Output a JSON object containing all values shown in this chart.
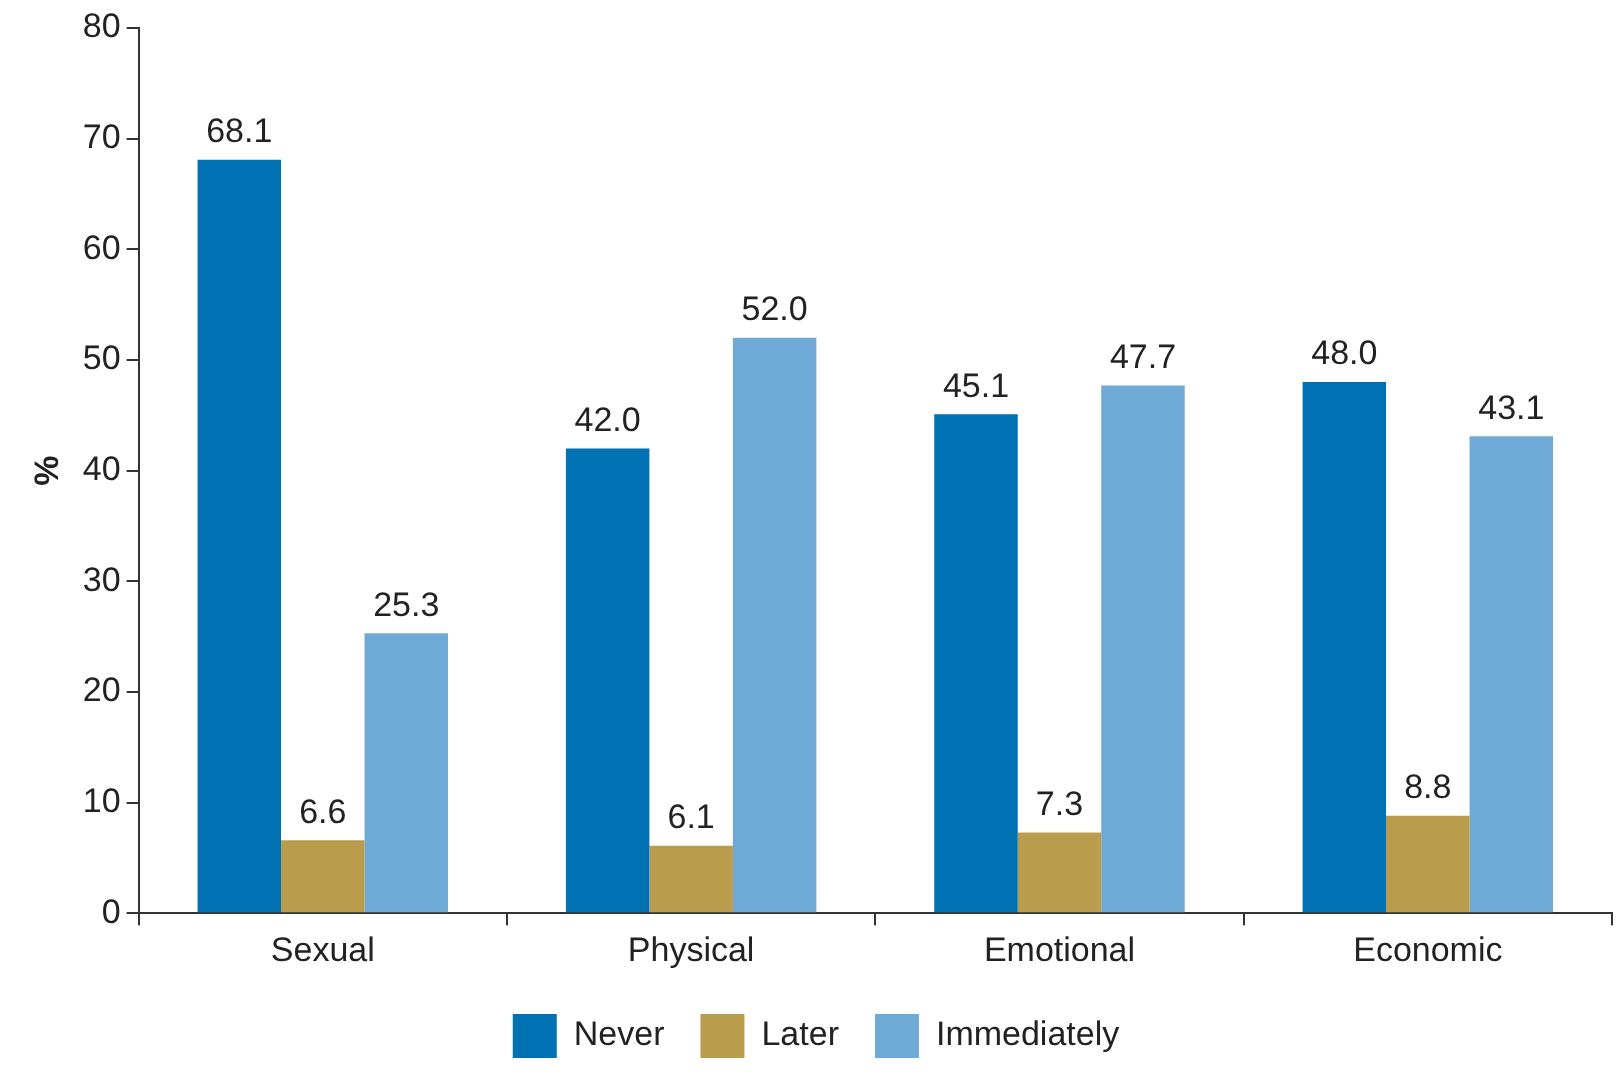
{
  "chart_data": {
    "type": "bar",
    "ylabel": "%",
    "categories": [
      "Sexual",
      "Physical",
      "Emotional",
      "Economic"
    ],
    "series": [
      {
        "name": "Never",
        "color": "#0071b2",
        "values": [
          68.1,
          42.0,
          45.1,
          48.0
        ],
        "value_labels": [
          "68.1",
          "42.0",
          "45.1",
          "48.0"
        ]
      },
      {
        "name": "Later",
        "color": "#b99d4d",
        "values": [
          6.6,
          6.1,
          7.3,
          8.8
        ],
        "value_labels": [
          "6.6",
          "6.1",
          "7.3",
          "8.8"
        ]
      },
      {
        "name": "Immediately",
        "color": "#6faad6",
        "values": [
          25.3,
          52.0,
          47.7,
          43.1
        ],
        "value_labels": [
          "25.3",
          "52.0",
          "47.7",
          "43.1"
        ]
      }
    ],
    "ylim": [
      0,
      80
    ],
    "yticks": [
      0,
      10,
      20,
      30,
      40,
      50,
      60,
      70,
      80
    ],
    "grid": false,
    "legend": "bottom"
  }
}
